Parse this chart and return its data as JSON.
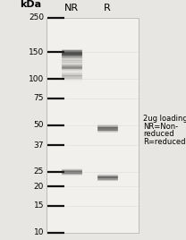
{
  "fig_bg": "#e8e6e2",
  "gel_bg": "#f2f0ed",
  "gel_lane_bg": "#f5f3f0",
  "title_kda": "kDa",
  "col_labels": [
    "NR",
    "R"
  ],
  "marker_positions": [
    250,
    150,
    100,
    75,
    50,
    37,
    25,
    20,
    15,
    10
  ],
  "NR_bands": [
    {
      "kda": 148,
      "intensity": 0.9,
      "thickness": 4.5,
      "smear": true
    },
    {
      "kda": 120,
      "intensity": 0.3,
      "thickness": 3.0,
      "smear": false
    },
    {
      "kda": 105,
      "intensity": 0.2,
      "thickness": 4.0,
      "smear": false
    },
    {
      "kda": 25,
      "intensity": 0.5,
      "thickness": 3.5,
      "smear": false
    }
  ],
  "R_bands": [
    {
      "kda": 48,
      "intensity": 0.72,
      "thickness": 4.0,
      "smear": false
    },
    {
      "kda": 23,
      "intensity": 0.62,
      "thickness": 3.5,
      "smear": false
    }
  ],
  "marker_band_color": "#111111",
  "sample_band_NR_color": "#2a2a2a",
  "sample_band_R_color": "#3a3a3a",
  "annotation_lines": [
    "2ug loading",
    "NR=Non-",
    "reduced",
    "R=reduced"
  ],
  "tick_labels_fontsize": 6.5,
  "col_label_fontsize": 8,
  "kda_label_fontsize": 8,
  "annotation_fontsize": 6.0,
  "marker_lw": 1.6,
  "faint_marker_lw": 0.4
}
